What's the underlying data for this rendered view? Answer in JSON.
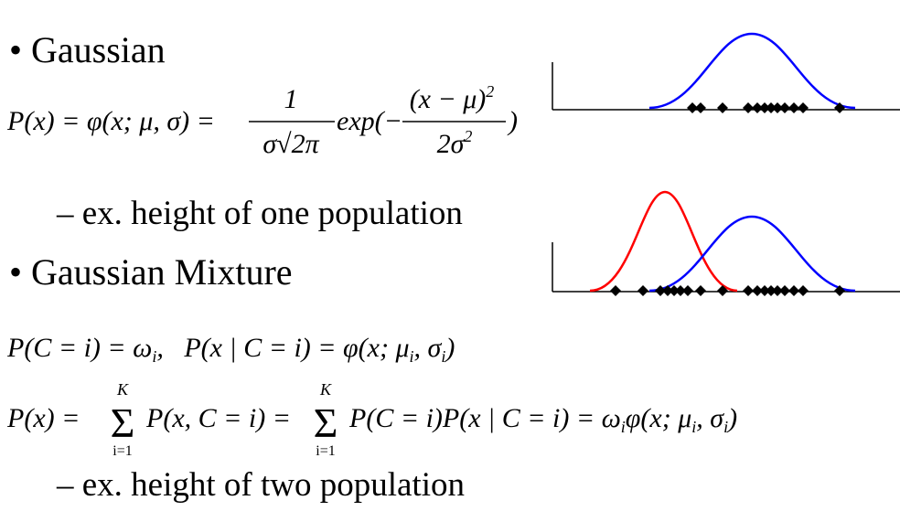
{
  "bullet_1": "• Gaussian",
  "formula_1": {
    "lhs": "P(x) = φ(x; μ, σ) =",
    "num_1": "1",
    "den_1": "σ√2π",
    "exp": "exp(−",
    "num_2": "(x − μ)",
    "num_2_sup": "2",
    "den_2": "2σ",
    "den_2_sup": "2",
    "close": ")"
  },
  "sub_1": "– ex. height of one population",
  "bullet_2": "• Gaussian Mixture",
  "formula_2": {
    "part_1": "P(C = i) = ω",
    "sub_1": "i",
    "part_2": ",   P(x | C = i) = φ(x; μ",
    "sub_2": "i",
    "part_3": ", σ",
    "sub_3": "i",
    "part_4": ")"
  },
  "formula_3": {
    "lhs": "P(x) =",
    "sum_1": "Σ",
    "sum_1_top": "K",
    "sum_1_bottom": "i=1",
    "mid": "P(x, C = i) =",
    "sum_2": "Σ",
    "sum_2_top": "K",
    "sum_2_bottom": "i=1",
    "part_1": "P(C = i)P(x | C = i) = ω",
    "sub_1": "i",
    "part_2": "φ(x; μ",
    "sub_2": "i",
    "part_3": ", σ",
    "sub_3": "i",
    "part_4": ")"
  },
  "sub_2": "– ex. height of two population"
}
